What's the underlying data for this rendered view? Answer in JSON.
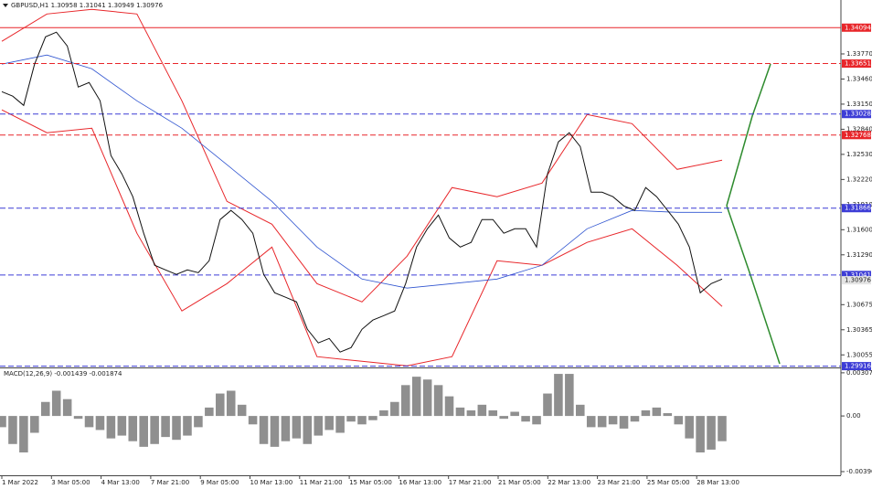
{
  "chart_data": {
    "type": "line",
    "title": "GBPUSD,H1 1.30958 1.31041 1.30949 1.30976",
    "x_labels": [
      "1 Mar 2022",
      "3 Mar 05:00",
      "4 Mar 13:00",
      "7 Mar 21:00",
      "9 Mar 05:00",
      "10 Mar 13:00",
      "11 Mar 21:00",
      "15 Mar 05:00",
      "16 Mar 13:00",
      "17 Mar 21:00",
      "21 Mar 05:00",
      "22 Mar 13:00",
      "23 Mar 21:00",
      "25 Mar 05:00",
      "28 Mar 13:00"
    ],
    "ylim": [
      1.299,
      1.343
    ],
    "yticks": [
      {
        "value": 1.3377,
        "label": "1.33770"
      },
      {
        "value": 1.3346,
        "label": "1.33460"
      },
      {
        "value": 1.3315,
        "label": "1.33150"
      },
      {
        "value": 1.3284,
        "label": "1.32840"
      },
      {
        "value": 1.3253,
        "label": "1.32530"
      },
      {
        "value": 1.3222,
        "label": "1.32220"
      },
      {
        "value": 1.3191,
        "label": "1.31910"
      },
      {
        "value": 1.316,
        "label": "1.31600"
      },
      {
        "value": 1.3129,
        "label": "1.31290"
      },
      {
        "value": 1.30675,
        "label": "1.30675"
      },
      {
        "value": 1.30365,
        "label": "1.30365"
      },
      {
        "value": 1.30055,
        "label": "1.30055"
      }
    ],
    "levels": [
      {
        "value": 1.34094,
        "color": "#e8262a",
        "style": "solid"
      },
      {
        "value": 1.33651,
        "color": "#e8262a",
        "style": "dashed"
      },
      {
        "value": 1.33028,
        "color": "#3d3dd6",
        "style": "dashed"
      },
      {
        "value": 1.32768,
        "color": "#e8262a",
        "style": "dashed"
      },
      {
        "value": 1.31866,
        "color": "#3d3dd6",
        "style": "dashed"
      },
      {
        "value": 1.31041,
        "color": "#3d3dd6",
        "style": "dashed"
      },
      {
        "value": 1.29916,
        "color": "#3d3dd6",
        "style": "dashed"
      }
    ],
    "current_price": 1.30976,
    "price_color": "#111111",
    "values": [
      1.33304,
      1.33248,
      1.33135,
      1.33643,
      1.33981,
      1.34038,
      1.33868,
      1.33361,
      1.33417,
      1.33191,
      1.32515,
      1.32289,
      1.32007,
      1.31556,
      1.31161,
      1.31104,
      1.31048,
      1.31104,
      1.3107,
      1.31217,
      1.31725,
      1.31838,
      1.31725,
      1.31556,
      1.31048,
      1.30822,
      1.30766,
      1.30709,
      1.30371,
      1.30202,
      1.30258,
      1.30089,
      1.30145,
      1.30371,
      1.30484,
      1.3054,
      1.30597,
      1.30935,
      1.31386,
      1.31612,
      1.31781,
      1.31499,
      1.31386,
      1.31443,
      1.31725,
      1.31725,
      1.31556,
      1.31612,
      1.31612,
      1.31386,
      1.32289,
      1.32684,
      1.32797,
      1.32627,
      1.32063,
      1.32063,
      1.32007,
      1.31894,
      1.31838,
      1.3212,
      1.32007,
      1.31838,
      1.31668,
      1.31386,
      1.30822,
      1.30935,
      1.30991
    ],
    "ma_color": "#2f54d0",
    "ma_values": [
      1.33643,
      1.33756,
      1.33586,
      1.33191,
      1.32853,
      1.32402,
      1.3195,
      1.31386,
      1.30991,
      1.30879,
      1.30935,
      1.30991,
      1.31161,
      1.31612,
      1.31838,
      1.31815,
      1.31815
    ],
    "band_color": "#e8262a",
    "band_upper": [
      1.33925,
      1.34263,
      1.3432,
      1.34263,
      1.33191,
      1.3195,
      1.31668,
      1.30935,
      1.30709,
      1.31273,
      1.3212,
      1.32007,
      1.32176,
      1.33022,
      1.32909,
      1.32345,
      1.32458
    ],
    "band_lower": [
      1.33079,
      1.32797,
      1.32853,
      1.31556,
      1.30597,
      1.30935,
      1.31386,
      1.30033,
      1.29976,
      1.2992,
      1.30033,
      1.31217,
      1.31161,
      1.31443,
      1.31612,
      1.31161,
      1.30653
    ],
    "macd": {
      "label": "MACD(12,26,9) -0.001439 -0.001874",
      "ylim": [
        -0.00423,
        0.00333
      ],
      "yticks": [
        0.003077,
        {
          "value": 0,
          "label": "0.00"
        },
        -0.003968
      ],
      "color": "#8f8f8f",
      "values": [
        -0.0008,
        -0.002,
        -0.0026,
        -0.0012,
        0.001,
        0.0018,
        0.0012,
        -0.0002,
        -0.0008,
        -0.001,
        -0.0016,
        -0.0014,
        -0.0018,
        -0.0022,
        -0.002,
        -0.0015,
        -0.0017,
        -0.0014,
        -0.0008,
        0.0006,
        0.0016,
        0.0018,
        0.0008,
        -0.0006,
        -0.002,
        -0.0022,
        -0.0018,
        -0.0016,
        -0.002,
        -0.0014,
        -0.001,
        -0.0012,
        -0.0004,
        -0.0006,
        -0.0003,
        0.0004,
        0.001,
        0.0022,
        0.0028,
        0.0026,
        0.0022,
        0.0014,
        0.0006,
        0.0004,
        0.0008,
        0.0004,
        -0.0002,
        0.0003,
        -0.0004,
        -0.0006,
        0.0016,
        0.003,
        0.003,
        0.0008,
        -0.0008,
        -0.0008,
        -0.0006,
        -0.0009,
        -0.0004,
        0.0004,
        0.0006,
        0.0002,
        -0.0006,
        -0.0016,
        -0.0026,
        -0.0024,
        -0.0018
      ]
    }
  }
}
